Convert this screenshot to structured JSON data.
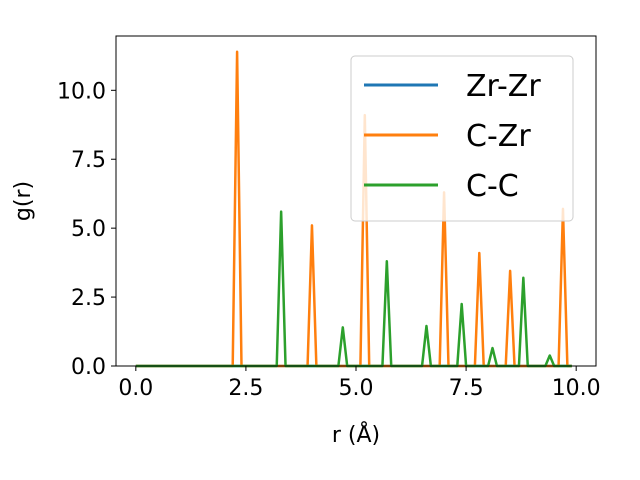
{
  "chart_data": {
    "type": "line",
    "xlabel": "r (Å)",
    "ylabel": "g(r)",
    "xlim": [
      -0.45,
      10.45
    ],
    "ylim": [
      0.0,
      11.97
    ],
    "x_ticks": [
      "0.0",
      "2.5",
      "5.0",
      "7.5",
      "10.0"
    ],
    "y_ticks": [
      "0.0",
      "2.5",
      "5.0",
      "7.5",
      "10.0"
    ],
    "grid": false,
    "legend_position": "top-right",
    "series": [
      {
        "name": "Zr-Zr",
        "color": "#1f77b4",
        "x": [
          0.0,
          9.9
        ],
        "y": [
          0.0,
          0.0
        ]
      },
      {
        "name": "C-Zr",
        "color": "#ff7f0e",
        "x": [
          0.0,
          2.2,
          2.3,
          2.4,
          3.9,
          4.0,
          4.1,
          5.1,
          5.2,
          5.3,
          6.9,
          7.0,
          7.1,
          7.7,
          7.8,
          7.9,
          8.4,
          8.5,
          8.6,
          9.6,
          9.7,
          9.8,
          9.9
        ],
        "y": [
          0.0,
          0.0,
          11.4,
          0.0,
          0.0,
          5.1,
          0.0,
          0.0,
          9.1,
          0.0,
          0.0,
          6.3,
          0.0,
          0.0,
          4.1,
          0.0,
          0.0,
          3.45,
          0.0,
          0.0,
          5.7,
          0.0,
          0.0
        ]
      },
      {
        "name": "C-C",
        "color": "#2ca02c",
        "x": [
          0.0,
          3.2,
          3.3,
          3.4,
          4.6,
          4.7,
          4.8,
          5.6,
          5.7,
          5.8,
          6.5,
          6.6,
          6.7,
          7.3,
          7.4,
          7.5,
          8.0,
          8.1,
          8.2,
          8.7,
          8.8,
          8.9,
          9.3,
          9.4,
          9.5,
          9.9
        ],
        "y": [
          0.0,
          0.0,
          5.6,
          0.0,
          0.0,
          1.4,
          0.0,
          0.0,
          3.8,
          0.0,
          0.0,
          1.45,
          0.0,
          0.0,
          2.25,
          0.0,
          0.0,
          0.65,
          0.0,
          0.0,
          3.2,
          0.0,
          0.0,
          0.38,
          0.0,
          0.0
        ]
      }
    ]
  }
}
